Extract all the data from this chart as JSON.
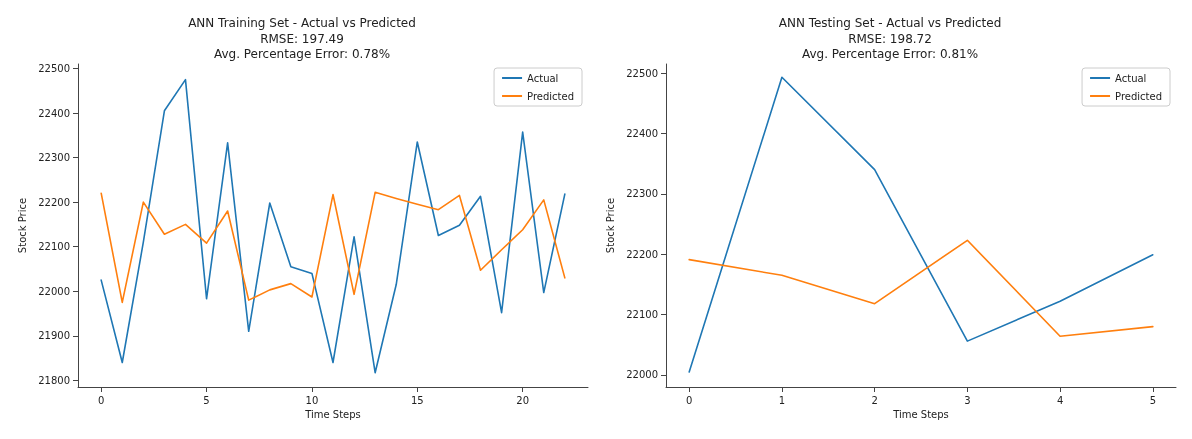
{
  "chart_data": [
    {
      "type": "line",
      "title": "ANN Training Set - Actual vs Predicted",
      "subtitle": "RMSE: 197.49\nAvg. Percentage Error: 0.78%",
      "xlabel": "Time Steps",
      "ylabel": "Stock Price",
      "x": [
        0,
        1,
        2,
        3,
        4,
        5,
        6,
        7,
        8,
        9,
        10,
        11,
        12,
        13,
        14,
        15,
        16,
        17,
        18,
        19,
        20,
        21,
        22
      ],
      "series": [
        {
          "name": "Actual",
          "color": "#1f77b4",
          "values": [
            22025,
            21840,
            22110,
            22405,
            22475,
            21983,
            22333,
            21910,
            22198,
            22055,
            22040,
            21840,
            22122,
            21817,
            22015,
            22335,
            22125,
            22148,
            22213,
            21952,
            22357,
            21997,
            22218
          ]
        },
        {
          "name": "Predicted",
          "color": "#ff7f0e",
          "values": [
            22220,
            21975,
            22200,
            22128,
            22150,
            22108,
            22180,
            21980,
            22003,
            22017,
            21987,
            22217,
            21993,
            22222,
            22208,
            22195,
            22183,
            22215,
            22047,
            22093,
            22138,
            22205,
            22030
          ]
        }
      ],
      "xlim": [
        -1.1,
        23.1
      ],
      "xticks": [
        0,
        5,
        10,
        15,
        20
      ],
      "ylim": [
        21785,
        22510
      ],
      "yticks": [
        21800,
        21900,
        22000,
        22100,
        22200,
        22300,
        22400,
        22500
      ],
      "grid": false,
      "legend": "top right",
      "marker": "none",
      "line_style": "solid"
    },
    {
      "type": "line",
      "title": "ANN Testing Set - Actual vs Predicted",
      "subtitle": "RMSE: 198.72\nAvg. Percentage Error: 0.81%",
      "xlabel": "Time Steps",
      "ylabel": "Stock Price",
      "x": [
        0,
        1,
        2,
        3,
        4,
        5
      ],
      "series": [
        {
          "name": "Actual",
          "color": "#1f77b4",
          "values": [
            22005,
            22493,
            22340,
            22056,
            22122,
            22199
          ]
        },
        {
          "name": "Predicted",
          "color": "#ff7f0e",
          "values": [
            22191,
            22165,
            22118,
            22223,
            22064,
            22080
          ]
        }
      ],
      "xlim": [
        -0.25,
        5.25
      ],
      "xticks": [
        0,
        1,
        2,
        3,
        4,
        5
      ],
      "ylim": [
        21980,
        22515
      ],
      "yticks": [
        22000,
        22100,
        22200,
        22300,
        22400,
        22500
      ],
      "grid": false,
      "legend": "top right",
      "marker": "none",
      "line_style": "solid"
    }
  ]
}
